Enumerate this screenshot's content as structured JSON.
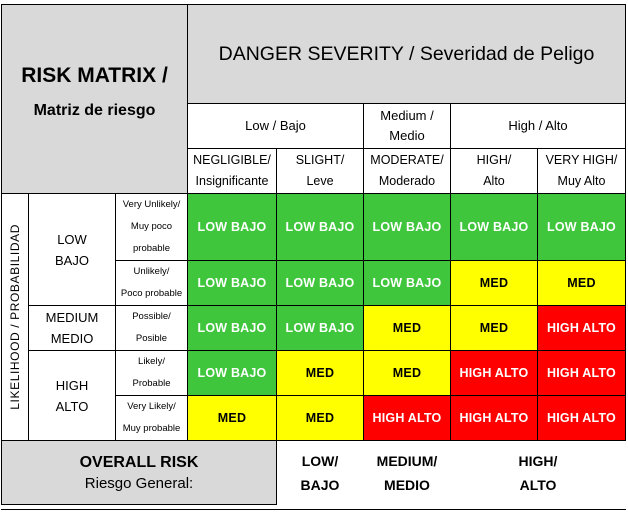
{
  "title": {
    "main": "RISK MATRIX /",
    "sub": "Matriz de riesgo"
  },
  "severity": {
    "header": "DANGER SEVERITY / Severidad de Peligo",
    "groups": [
      {
        "line1": "Low / Bajo",
        "line2": ""
      },
      {
        "line1": "Medium /",
        "line2": "Medio"
      },
      {
        "line1": "High / Alto",
        "line2": ""
      }
    ],
    "columns": [
      {
        "line1": "NEGLIGIBLE/",
        "line2": "Insignificante"
      },
      {
        "line1": "SLIGHT/",
        "line2": "Leve"
      },
      {
        "line1": "MODERATE/",
        "line2": "Moderado"
      },
      {
        "line1": "HIGH/",
        "line2": "Alto"
      },
      {
        "line1": "VERY HIGH/",
        "line2": "Muy Alto"
      }
    ]
  },
  "likelihood": {
    "axis_label": "LIKELIHOOD / PROBABILIDAD",
    "groups": [
      {
        "line1": "LOW",
        "line2": "BAJO"
      },
      {
        "line1": "MEDIUM",
        "line2": "MEDIO"
      },
      {
        "line1": "HIGH",
        "line2": "ALTO"
      }
    ],
    "rows": [
      {
        "line1": "Very Unlikely/",
        "line2": "Muy poco",
        "line3": "probable"
      },
      {
        "line1": "Unlikely/",
        "line2": "Poco probable",
        "line3": ""
      },
      {
        "line1": "Possible/",
        "line2": "Posible",
        "line3": ""
      },
      {
        "line1": "Likely/",
        "line2": "Probable",
        "line3": ""
      },
      {
        "line1": "Very Likely/",
        "line2": "Muy probable",
        "line3": ""
      }
    ]
  },
  "matrix": [
    [
      {
        "label": "LOW BAJO",
        "level": "low"
      },
      {
        "label": "LOW BAJO",
        "level": "low"
      },
      {
        "label": "LOW BAJO",
        "level": "low"
      },
      {
        "label": "LOW BAJO",
        "level": "low"
      },
      {
        "label": "LOW BAJO",
        "level": "low"
      }
    ],
    [
      {
        "label": "LOW BAJO",
        "level": "low"
      },
      {
        "label": "LOW BAJO",
        "level": "low"
      },
      {
        "label": "LOW BAJO",
        "level": "low"
      },
      {
        "label": "MED",
        "level": "med"
      },
      {
        "label": "MED",
        "level": "med"
      }
    ],
    [
      {
        "label": "LOW BAJO",
        "level": "low"
      },
      {
        "label": "LOW BAJO",
        "level": "low"
      },
      {
        "label": "MED",
        "level": "med"
      },
      {
        "label": "MED",
        "level": "med"
      },
      {
        "label": "HIGH ALTO",
        "level": "high"
      }
    ],
    [
      {
        "label": "LOW BAJO",
        "level": "low"
      },
      {
        "label": "MED",
        "level": "med"
      },
      {
        "label": "MED",
        "level": "med"
      },
      {
        "label": "HIGH ALTO",
        "level": "high"
      },
      {
        "label": "HIGH ALTO",
        "level": "high"
      }
    ],
    [
      {
        "label": "MED",
        "level": "med"
      },
      {
        "label": "MED",
        "level": "med"
      },
      {
        "label": "HIGH ALTO",
        "level": "high"
      },
      {
        "label": "HIGH ALTO",
        "level": "high"
      },
      {
        "label": "HIGH ALTO",
        "level": "high"
      }
    ]
  ],
  "overall": {
    "title": "OVERALL RISK",
    "subtitle": "Riesgo General:",
    "values": [
      {
        "line1": "LOW/",
        "line2": "BAJO"
      },
      {
        "line1": "MEDIUM/",
        "line2": "MEDIO"
      },
      {
        "line1": "HIGH/",
        "line2": "ALTO"
      }
    ]
  },
  "colors": {
    "low": "#3fc63c",
    "med": "#ffff00",
    "high": "#ff0000",
    "header_grey": "#d9d9d9"
  }
}
